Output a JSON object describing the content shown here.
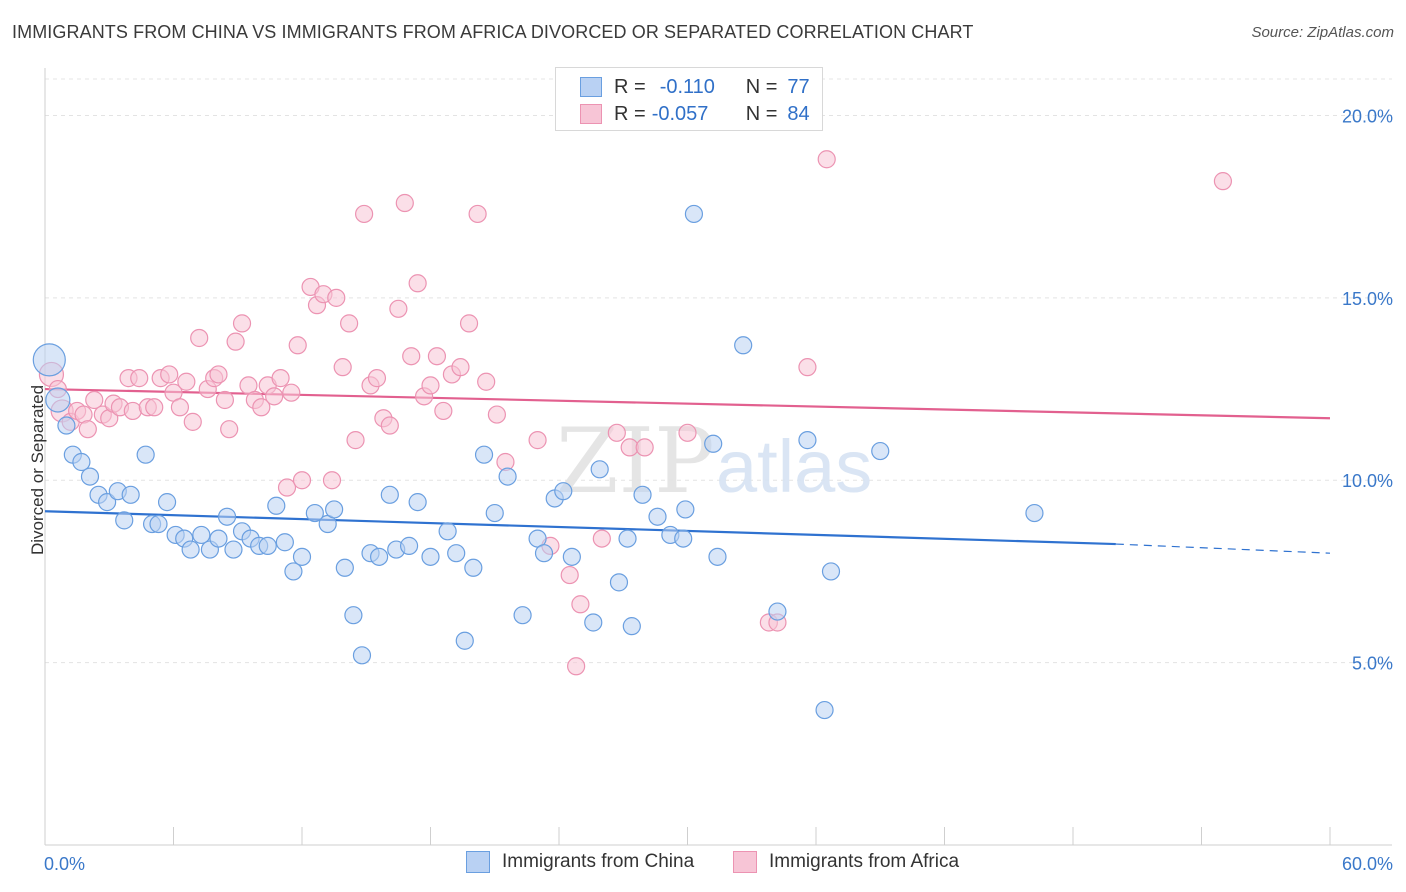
{
  "title": "IMMIGRANTS FROM CHINA VS IMMIGRANTS FROM AFRICA DIVORCED OR SEPARATED CORRELATION CHART",
  "source": "Source: ZipAtlas.com",
  "watermark": {
    "zip": "ZIP",
    "atlas": "atlas"
  },
  "legend": {
    "china": {
      "r_label": "R =",
      "r_value": "-0.110",
      "n_label": "N =",
      "n_value": "77"
    },
    "africa": {
      "r_label": "R =",
      "r_value": "-0.057",
      "n_label": "N =",
      "n_value": "84"
    }
  },
  "chart_data": {
    "type": "scatter",
    "xlabel": "",
    "ylabel": "Divorced or Separated",
    "xlim": [
      0,
      60
    ],
    "ylim": [
      0,
      21
    ],
    "x_tick_labels": [
      "0.0%",
      "60.0%"
    ],
    "y_ticks": [
      5,
      10,
      15,
      20
    ],
    "y_tick_labels": [
      "5.0%",
      "10.0%",
      "15.0%",
      "20.0%"
    ],
    "grid": true,
    "legend_position": "bottom",
    "series": [
      {
        "name": "Immigrants from China",
        "color": "#6a9fe0",
        "fill": "#b9d1f3",
        "line_color": "#2f72d0",
        "trend": {
          "x0": 0,
          "y0": 9.15,
          "x1": 50,
          "y1": 8.25,
          "dash_to_x": 60,
          "dash_to_y": 8.0
        },
        "points": [
          [
            0.2,
            13.3
          ],
          [
            0.6,
            12.2
          ],
          [
            1.0,
            11.5
          ],
          [
            1.3,
            10.7
          ],
          [
            1.7,
            10.5
          ],
          [
            2.1,
            10.1
          ],
          [
            2.5,
            9.6
          ],
          [
            2.9,
            9.4
          ],
          [
            3.4,
            9.7
          ],
          [
            3.7,
            8.9
          ],
          [
            4.0,
            9.6
          ],
          [
            4.7,
            10.7
          ],
          [
            5.0,
            8.8
          ],
          [
            5.3,
            8.8
          ],
          [
            5.7,
            9.4
          ],
          [
            6.1,
            8.5
          ],
          [
            6.5,
            8.4
          ],
          [
            6.8,
            8.1
          ],
          [
            7.3,
            8.5
          ],
          [
            7.7,
            8.1
          ],
          [
            8.1,
            8.4
          ],
          [
            8.5,
            9.0
          ],
          [
            8.8,
            8.1
          ],
          [
            9.2,
            8.6
          ],
          [
            9.6,
            8.4
          ],
          [
            10.0,
            8.2
          ],
          [
            10.4,
            8.2
          ],
          [
            10.8,
            9.3
          ],
          [
            11.2,
            8.3
          ],
          [
            11.6,
            7.5
          ],
          [
            12.0,
            7.9
          ],
          [
            12.6,
            9.1
          ],
          [
            13.2,
            8.8
          ],
          [
            13.5,
            9.2
          ],
          [
            14.0,
            7.6
          ],
          [
            14.4,
            6.3
          ],
          [
            14.8,
            5.2
          ],
          [
            15.2,
            8.0
          ],
          [
            15.6,
            7.9
          ],
          [
            16.1,
            9.6
          ],
          [
            16.4,
            8.1
          ],
          [
            17.0,
            8.2
          ],
          [
            17.4,
            9.4
          ],
          [
            18.0,
            7.9
          ],
          [
            18.8,
            8.6
          ],
          [
            19.2,
            8.0
          ],
          [
            19.6,
            5.6
          ],
          [
            20.0,
            7.6
          ],
          [
            20.5,
            10.7
          ],
          [
            21.0,
            9.1
          ],
          [
            21.6,
            10.1
          ],
          [
            22.3,
            6.3
          ],
          [
            23.0,
            8.4
          ],
          [
            23.3,
            8.0
          ],
          [
            23.8,
            9.5
          ],
          [
            24.2,
            9.7
          ],
          [
            24.6,
            7.9
          ],
          [
            25.6,
            6.1
          ],
          [
            25.9,
            10.3
          ],
          [
            26.8,
            7.2
          ],
          [
            27.2,
            8.4
          ],
          [
            27.4,
            6.0
          ],
          [
            27.9,
            9.6
          ],
          [
            28.6,
            9.0
          ],
          [
            29.2,
            8.5
          ],
          [
            29.8,
            8.4
          ],
          [
            29.9,
            9.2
          ],
          [
            30.3,
            17.3
          ],
          [
            31.2,
            11.0
          ],
          [
            31.4,
            7.9
          ],
          [
            32.6,
            13.7
          ],
          [
            34.2,
            6.4
          ],
          [
            35.6,
            11.1
          ],
          [
            36.4,
            3.7
          ],
          [
            36.7,
            7.5
          ],
          [
            39.0,
            10.8
          ],
          [
            46.2,
            9.1
          ]
        ]
      },
      {
        "name": "Immigrants from Africa",
        "color": "#ec93b2",
        "fill": "#f7c5d6",
        "line_color": "#e2608f",
        "trend": {
          "x0": 0,
          "y0": 12.5,
          "x1": 60,
          "y1": 11.7
        },
        "points": [
          [
            0.3,
            12.9
          ],
          [
            0.6,
            12.5
          ],
          [
            0.8,
            11.9
          ],
          [
            1.2,
            11.6
          ],
          [
            1.5,
            11.9
          ],
          [
            1.8,
            11.8
          ],
          [
            2.0,
            11.4
          ],
          [
            2.3,
            12.2
          ],
          [
            2.7,
            11.8
          ],
          [
            3.0,
            11.7
          ],
          [
            3.2,
            12.1
          ],
          [
            3.5,
            12.0
          ],
          [
            3.9,
            12.8
          ],
          [
            4.1,
            11.9
          ],
          [
            4.4,
            12.8
          ],
          [
            4.8,
            12.0
          ],
          [
            5.1,
            12.0
          ],
          [
            5.4,
            12.8
          ],
          [
            5.8,
            12.9
          ],
          [
            6.0,
            12.4
          ],
          [
            6.3,
            12.0
          ],
          [
            6.6,
            12.7
          ],
          [
            6.9,
            11.6
          ],
          [
            7.2,
            13.9
          ],
          [
            7.6,
            12.5
          ],
          [
            7.9,
            12.8
          ],
          [
            8.1,
            12.9
          ],
          [
            8.4,
            12.2
          ],
          [
            8.6,
            11.4
          ],
          [
            8.9,
            13.8
          ],
          [
            9.2,
            14.3
          ],
          [
            9.5,
            12.6
          ],
          [
            9.8,
            12.2
          ],
          [
            10.1,
            12.0
          ],
          [
            10.4,
            12.6
          ],
          [
            10.7,
            12.3
          ],
          [
            11.0,
            12.8
          ],
          [
            11.3,
            9.8
          ],
          [
            11.5,
            12.4
          ],
          [
            11.8,
            13.7
          ],
          [
            12.0,
            10.0
          ],
          [
            12.4,
            15.3
          ],
          [
            12.7,
            14.8
          ],
          [
            13.0,
            15.1
          ],
          [
            13.4,
            10.0
          ],
          [
            13.6,
            15.0
          ],
          [
            13.9,
            13.1
          ],
          [
            14.2,
            14.3
          ],
          [
            14.5,
            11.1
          ],
          [
            14.9,
            17.3
          ],
          [
            15.2,
            12.6
          ],
          [
            15.5,
            12.8
          ],
          [
            15.8,
            11.7
          ],
          [
            16.1,
            11.5
          ],
          [
            16.5,
            14.7
          ],
          [
            16.8,
            17.6
          ],
          [
            17.1,
            13.4
          ],
          [
            17.4,
            15.4
          ],
          [
            17.7,
            12.3
          ],
          [
            18.0,
            12.6
          ],
          [
            18.3,
            13.4
          ],
          [
            18.6,
            11.9
          ],
          [
            19.0,
            12.9
          ],
          [
            19.4,
            13.1
          ],
          [
            19.8,
            14.3
          ],
          [
            20.2,
            17.3
          ],
          [
            20.6,
            12.7
          ],
          [
            21.1,
            11.8
          ],
          [
            21.5,
            10.5
          ],
          [
            23.0,
            11.1
          ],
          [
            23.6,
            8.2
          ],
          [
            24.5,
            7.4
          ],
          [
            24.8,
            4.9
          ],
          [
            25.0,
            6.6
          ],
          [
            26.0,
            8.4
          ],
          [
            26.7,
            11.3
          ],
          [
            27.3,
            10.9
          ],
          [
            28.0,
            10.9
          ],
          [
            30.0,
            11.3
          ],
          [
            33.8,
            6.1
          ],
          [
            34.2,
            6.1
          ],
          [
            35.6,
            13.1
          ],
          [
            36.5,
            18.8
          ],
          [
            55.0,
            18.2
          ]
        ]
      }
    ]
  }
}
